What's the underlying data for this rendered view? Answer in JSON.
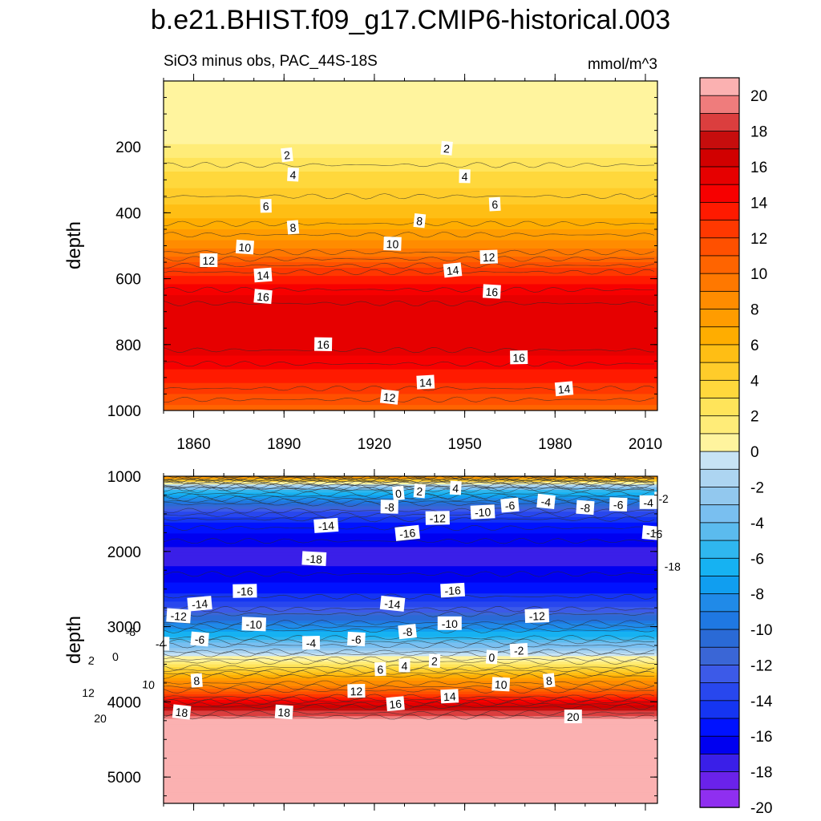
{
  "chart_data": [
    {
      "type": "heatmap",
      "title": "b.e21.BHIST.f09_g17.CMIP6-historical.003",
      "subtitle": "SiO3 minus obs, PAC_44S-18S",
      "units": "mmol/m^3",
      "xlabel": "",
      "ylabel": "depth",
      "xlim": [
        1850,
        2014
      ],
      "ylim": [
        1000,
        0
      ],
      "x_ticks": [
        "1860",
        "1890",
        "1920",
        "1950",
        "1980",
        "2010"
      ],
      "y_ticks": [
        "200",
        "400",
        "600",
        "800",
        "1000"
      ],
      "depth_profile": {
        "depth": [
          50,
          180,
          210,
          300,
          400,
          500,
          600,
          650,
          700,
          800,
          900,
          1000
        ],
        "value": [
          0.6,
          1,
          2,
          4,
          6,
          9,
          14,
          15.5,
          16.5,
          16.4,
          14,
          11
        ]
      },
      "contour_labels": [
        {
          "text": "2",
          "year": 1891,
          "depth": 225
        },
        {
          "text": "2",
          "year": 1944,
          "depth": 205
        },
        {
          "text": "4",
          "year": 1893,
          "depth": 285
        },
        {
          "text": "4",
          "year": 1950,
          "depth": 290
        },
        {
          "text": "6",
          "year": 1884,
          "depth": 380
        },
        {
          "text": "6",
          "year": 1960,
          "depth": 375
        },
        {
          "text": "8",
          "year": 1893,
          "depth": 445
        },
        {
          "text": "8",
          "year": 1935,
          "depth": 425
        },
        {
          "text": "10",
          "year": 1877,
          "depth": 505
        },
        {
          "text": "10",
          "year": 1926,
          "depth": 495
        },
        {
          "text": "12",
          "year": 1865,
          "depth": 545
        },
        {
          "text": "12",
          "year": 1958,
          "depth": 535
        },
        {
          "text": "14",
          "year": 1883,
          "depth": 590
        },
        {
          "text": "14",
          "year": 1946,
          "depth": 575
        },
        {
          "text": "16",
          "year": 1883,
          "depth": 655
        },
        {
          "text": "16",
          "year": 1959,
          "depth": 640
        },
        {
          "text": "16",
          "year": 1903,
          "depth": 800
        },
        {
          "text": "16",
          "year": 1968,
          "depth": 840
        },
        {
          "text": "14",
          "year": 1937,
          "depth": 915
        },
        {
          "text": "14",
          "year": 1983,
          "depth": 935
        },
        {
          "text": "12",
          "year": 1925,
          "depth": 960
        }
      ]
    },
    {
      "type": "heatmap",
      "xlabel": "",
      "ylabel": "depth",
      "xlim": [
        1850,
        2014
      ],
      "ylim": [
        5350,
        1000
      ],
      "y_ticks": [
        "1000",
        "2000",
        "3000",
        "4000",
        "5000"
      ],
      "depth_profile": {
        "depth": [
          1000,
          1100,
          1200,
          1400,
          1600,
          2000,
          2200,
          2500,
          2700,
          2900,
          3100,
          3300,
          3400,
          3500,
          3700,
          3900,
          4100,
          4250,
          5350
        ],
        "value": [
          10,
          0,
          -6,
          -12,
          -15.5,
          -17.8,
          -17.5,
          -16,
          -14,
          -11,
          -7,
          -3,
          0,
          3,
          8,
          12,
          18,
          21,
          21
        ]
      },
      "contour_labels": [
        {
          "text": "0",
          "year": 1928,
          "depth": 1230
        },
        {
          "text": "2",
          "year": 1935,
          "depth": 1200
        },
        {
          "text": "4",
          "year": 1947,
          "depth": 1160
        },
        {
          "text": "-8",
          "year": 1925,
          "depth": 1410
        },
        {
          "text": "-12",
          "year": 1941,
          "depth": 1560
        },
        {
          "text": "-10",
          "year": 1956,
          "depth": 1480
        },
        {
          "text": "-6",
          "year": 1965,
          "depth": 1390
        },
        {
          "text": "-4",
          "year": 1977,
          "depth": 1340
        },
        {
          "text": "-8",
          "year": 1990,
          "depth": 1420
        },
        {
          "text": "-6",
          "year": 2001,
          "depth": 1380
        },
        {
          "text": "-4",
          "year": 2011,
          "depth": 1350
        },
        {
          "text": "-2",
          "year": 2016,
          "depth": 1300
        },
        {
          "text": "-14",
          "year": 1904,
          "depth": 1660
        },
        {
          "text": "-16",
          "year": 1931,
          "depth": 1760
        },
        {
          "text": "-16",
          "year": 2013,
          "depth": 1760
        },
        {
          "text": "-18",
          "year": 1900,
          "depth": 2100
        },
        {
          "text": "-18",
          "year": 2019,
          "depth": 2200
        },
        {
          "text": "-16",
          "year": 1877,
          "depth": 2530
        },
        {
          "text": "-16",
          "year": 1946,
          "depth": 2520
        },
        {
          "text": "-14",
          "year": 1862,
          "depth": 2700
        },
        {
          "text": "-14",
          "year": 1926,
          "depth": 2700
        },
        {
          "text": "-12",
          "year": 1855,
          "depth": 2860
        },
        {
          "text": "-10",
          "year": 1880,
          "depth": 2970
        },
        {
          "text": "-10",
          "year": 1945,
          "depth": 2960
        },
        {
          "text": "-12",
          "year": 1974,
          "depth": 2860
        },
        {
          "text": "-8",
          "year": 1839,
          "depth": 3070
        },
        {
          "text": "-8",
          "year": 1931,
          "depth": 3070
        },
        {
          "text": "-6",
          "year": 1862,
          "depth": 3170
        },
        {
          "text": "-6",
          "year": 1914,
          "depth": 3170
        },
        {
          "text": "-4",
          "year": 1849,
          "depth": 3230
        },
        {
          "text": "-4",
          "year": 1899,
          "depth": 3220
        },
        {
          "text": "-2",
          "year": 1968,
          "depth": 3320
        },
        {
          "text": "0",
          "year": 1834,
          "depth": 3400
        },
        {
          "text": "2",
          "year": 1826,
          "depth": 3450
        },
        {
          "text": "0",
          "year": 1959,
          "depth": 3410
        },
        {
          "text": "2",
          "year": 1940,
          "depth": 3460
        },
        {
          "text": "4",
          "year": 1930,
          "depth": 3520
        },
        {
          "text": "6",
          "year": 1922,
          "depth": 3570
        },
        {
          "text": "8",
          "year": 1861,
          "depth": 3720
        },
        {
          "text": "8",
          "year": 1978,
          "depth": 3720
        },
        {
          "text": "10",
          "year": 1845,
          "depth": 3770
        },
        {
          "text": "10",
          "year": 1962,
          "depth": 3770
        },
        {
          "text": "12",
          "year": 1825,
          "depth": 3880
        },
        {
          "text": "12",
          "year": 1914,
          "depth": 3860
        },
        {
          "text": "14",
          "year": 1945,
          "depth": 3930
        },
        {
          "text": "16",
          "year": 1927,
          "depth": 4030
        },
        {
          "text": "18",
          "year": 1856,
          "depth": 4140
        },
        {
          "text": "18",
          "year": 1890,
          "depth": 4140
        },
        {
          "text": "20",
          "year": 1829,
          "depth": 4220
        },
        {
          "text": "20",
          "year": 1986,
          "depth": 4200
        }
      ]
    }
  ],
  "colorbar": {
    "labels": [
      "20",
      "18",
      "16",
      "14",
      "12",
      "10",
      "8",
      "6",
      "4",
      "2",
      "0",
      "-2",
      "-4",
      "-6",
      "-8",
      "-10",
      "-12",
      "-14",
      "-16",
      "-18",
      "-20"
    ],
    "bins": [
      {
        "value": 21,
        "color": "#fbb1b1"
      },
      {
        "value": 20,
        "color": "#ef7c7c"
      },
      {
        "value": 19,
        "color": "#db3e3e"
      },
      {
        "value": 18,
        "color": "#c60d0d"
      },
      {
        "value": 17,
        "color": "#d10000"
      },
      {
        "value": 16,
        "color": "#e60000"
      },
      {
        "value": 15,
        "color": "#f70000"
      },
      {
        "value": 14,
        "color": "#ff1a00"
      },
      {
        "value": 13,
        "color": "#ff3800"
      },
      {
        "value": 12,
        "color": "#ff5000"
      },
      {
        "value": 11,
        "color": "#ff6400"
      },
      {
        "value": 10,
        "color": "#ff7800"
      },
      {
        "value": 9,
        "color": "#ff8c00"
      },
      {
        "value": 8,
        "color": "#ff9c00"
      },
      {
        "value": 7,
        "color": "#ffad00"
      },
      {
        "value": 6,
        "color": "#ffbe14"
      },
      {
        "value": 5,
        "color": "#ffcc2a"
      },
      {
        "value": 4,
        "color": "#ffd83c"
      },
      {
        "value": 3,
        "color": "#ffe45a"
      },
      {
        "value": 2,
        "color": "#ffec78"
      },
      {
        "value": 1,
        "color": "#fff49e"
      },
      {
        "value": -1,
        "color": "#c7e3f5"
      },
      {
        "value": -2,
        "color": "#add5f1"
      },
      {
        "value": -3,
        "color": "#92c8ee"
      },
      {
        "value": -4,
        "color": "#79bff0"
      },
      {
        "value": -5,
        "color": "#5bbbee"
      },
      {
        "value": -6,
        "color": "#2fb7ef"
      },
      {
        "value": -7,
        "color": "#16b2f2"
      },
      {
        "value": -8,
        "color": "#109ef0"
      },
      {
        "value": -9,
        "color": "#208ae8"
      },
      {
        "value": -10,
        "color": "#1f78e2"
      },
      {
        "value": -11,
        "color": "#2a6ad6"
      },
      {
        "value": -12,
        "color": "#3a66d6"
      },
      {
        "value": -13,
        "color": "#3c5ae8"
      },
      {
        "value": -14,
        "color": "#2847ee"
      },
      {
        "value": -15,
        "color": "#1535f2"
      },
      {
        "value": -16,
        "color": "#0012ff"
      },
      {
        "value": -17,
        "color": "#0000f0"
      },
      {
        "value": -18,
        "color": "#3a1fe8"
      },
      {
        "value": -19,
        "color": "#6a22ea"
      },
      {
        "value": -20,
        "color": "#8f2ff0"
      }
    ]
  }
}
